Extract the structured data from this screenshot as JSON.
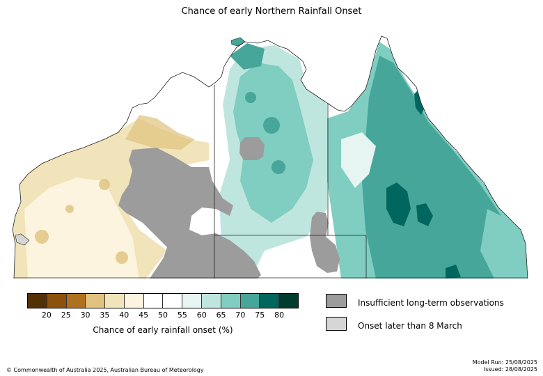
{
  "title": "Chance of early Northern Rainfall Onset",
  "colorbar": {
    "label": "Chance of early rainfall onset (%)",
    "ticks": [
      "20",
      "25",
      "30",
      "35",
      "40",
      "45",
      "50",
      "55",
      "60",
      "65",
      "70",
      "75",
      "80"
    ],
    "colors": [
      "#543005",
      "#8c510a",
      "#b0711f",
      "#dfc27d",
      "#f1e3ba",
      "#fcf4de",
      "#ffffff",
      "#ffffff",
      "#e6f5f1",
      "#bfe6de",
      "#80cdc1",
      "#46a699",
      "#01665e",
      "#003c30"
    ]
  },
  "legend": [
    {
      "label": "Insufficient long-term observations",
      "color": "#9c9c9c"
    },
    {
      "label": "Onset later than 8 March",
      "color": "#d6d6d6"
    }
  ],
  "footer": {
    "copyright": "© Commonwealth of Australia 2025, Australian Bureau of Meteorology",
    "model_run": "Model Run: 25/08/2025",
    "issued": "Issued: 28/08/2025"
  },
  "map": {
    "colors": {
      "land_dry_tan": "#f1e3ba",
      "land_light_tan": "#fcf4de",
      "land_white": "#ffffff",
      "teal_light": "#bfe6de",
      "teal_mid": "#80cdc1",
      "teal_dark": "#46a699",
      "teal_deep": "#01665e",
      "insufficient": "#9c9c9c",
      "coast": "#222222"
    }
  }
}
